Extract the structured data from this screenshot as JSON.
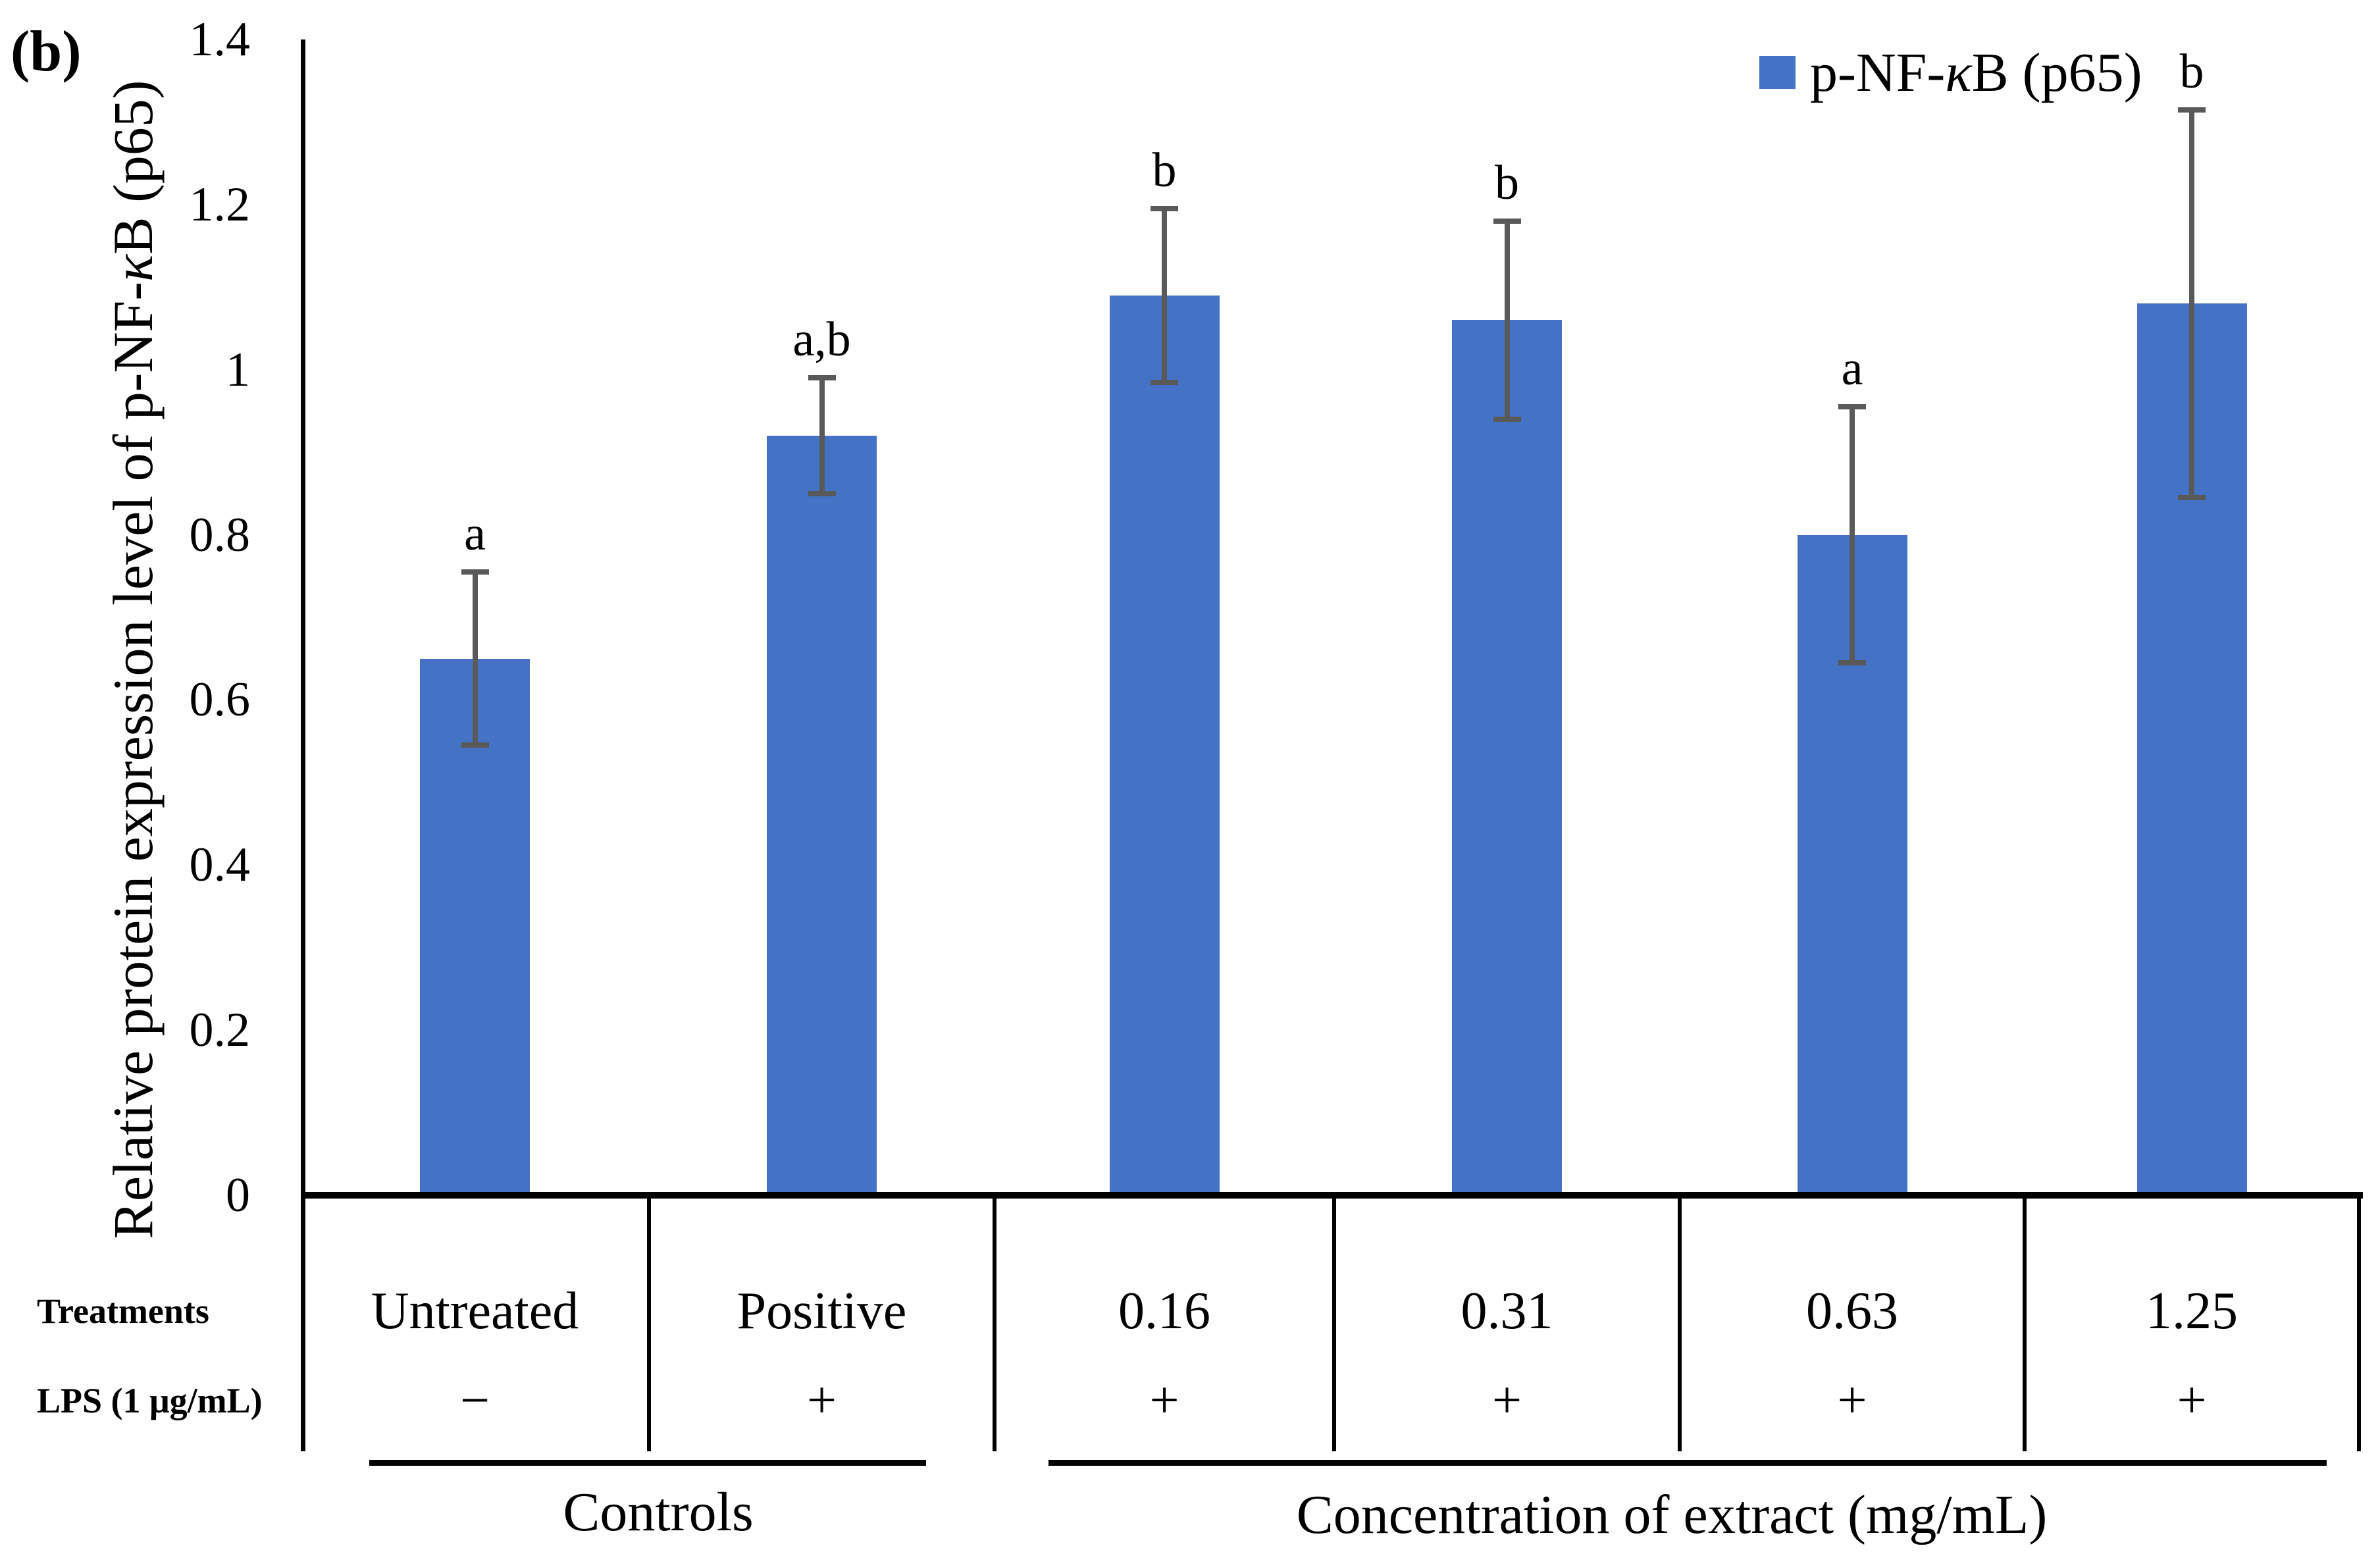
{
  "panel_label": "(b)",
  "legend": {
    "label": "p-NF-κB (p65)",
    "marker_color": "#4472C4"
  },
  "y_axis": {
    "title": "Relative protein expression level of p-NF-κB (p65)",
    "tick_labels": [
      "0",
      "0.2",
      "0.4",
      "0.6",
      "0.8",
      "1",
      "1.2",
      "1.4"
    ],
    "min": 0,
    "max": 1.4
  },
  "table": {
    "row_headers": [
      "Treatments",
      "LPS (1 μg/mL)"
    ],
    "treatments": [
      "Untreated",
      "Positive",
      "0.16",
      "0.31",
      "0.63",
      "1.25"
    ],
    "lps": [
      "−",
      "+",
      "+",
      "+",
      "+",
      "+"
    ],
    "groups": [
      {
        "label": "Controls",
        "span": [
          0,
          1
        ]
      },
      {
        "label": "Concentration of extract (mg/mL)",
        "span": [
          2,
          5
        ]
      }
    ]
  },
  "chart_data": {
    "type": "bar",
    "title": "",
    "categories": [
      "Untreated",
      "Positive",
      "0.16",
      "0.31",
      "0.63",
      "1.25"
    ],
    "series": [
      {
        "name": "p-NF-κB (p65)",
        "values": [
          0.65,
          0.92,
          1.09,
          1.06,
          0.8,
          1.08
        ],
        "errors": [
          0.105,
          0.07,
          0.105,
          0.12,
          0.155,
          0.235
        ],
        "sig_letters": [
          "a",
          "a,b",
          "b",
          "b",
          "a",
          "b"
        ]
      }
    ],
    "ylabel": "Relative protein expression level of p-NF-κB (p65)",
    "xlabel_groups": [
      "Controls",
      "Concentration of extract (mg/mL)"
    ],
    "ylim": [
      0,
      1.4
    ],
    "grid": false,
    "legend_position": "top-right",
    "bar_color": "#4472C4",
    "error_bar_color": "#595959"
  }
}
